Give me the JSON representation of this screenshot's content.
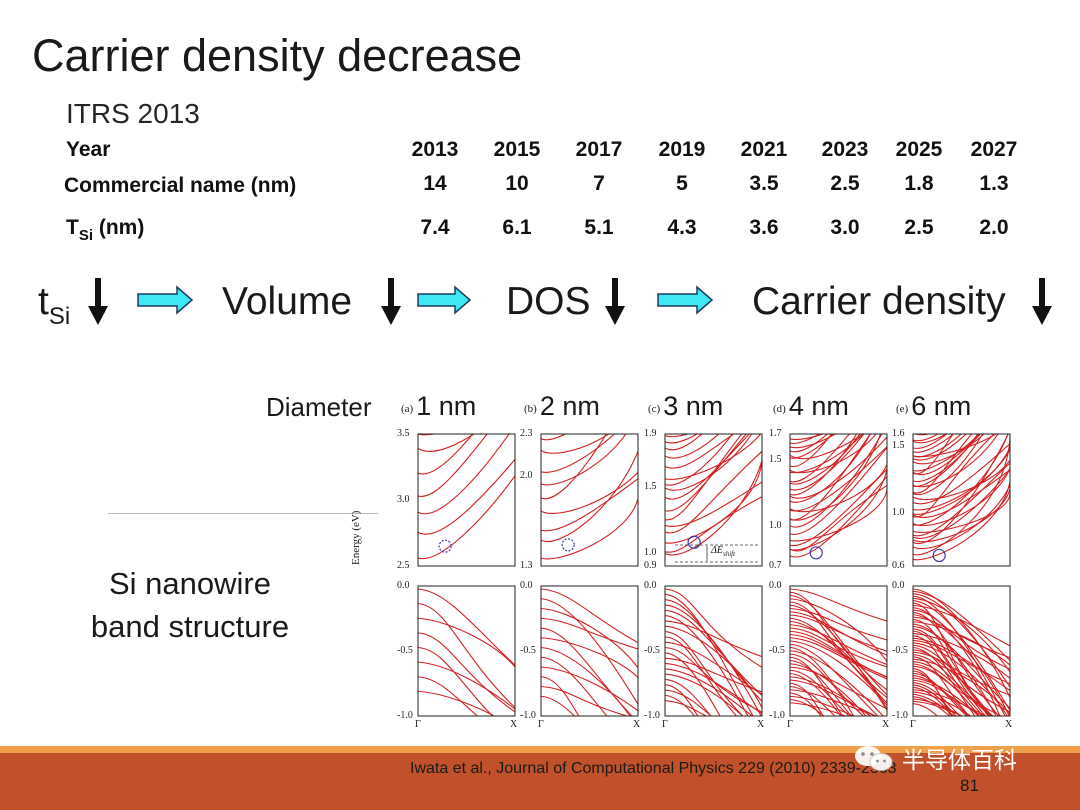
{
  "slide": {
    "title": "Carrier density decrease",
    "subtitle": "ITRS 2013",
    "page_number": "81",
    "citation": "Iwata et al., Journal of Computational Physics 229 (2010) 2339-2363"
  },
  "table": {
    "years_label": "Year",
    "commercial_label": "Commercial name (nm)",
    "tsi_label_main": "T",
    "tsi_label_sub": "Si",
    "tsi_label_unit": " (nm)",
    "years": [
      "2013",
      "2015",
      "2017",
      "2019",
      "2021",
      "2023",
      "2025",
      "2027"
    ],
    "commercial": [
      "14",
      "10",
      "7",
      "5",
      "3.5",
      "2.5",
      "1.8",
      "1.3"
    ],
    "tsi": [
      "7.4",
      "6.1",
      "5.1",
      "4.3",
      "3.6",
      "3.0",
      "2.5",
      "2.0"
    ]
  },
  "flow": {
    "tsi_main": "t",
    "tsi_sub": "Si",
    "volume": "Volume",
    "dos": "DOS",
    "carrier": "Carrier density"
  },
  "figure": {
    "diameter_label": "Diameter",
    "caption_line1": "Si nanowire",
    "caption_line2": "band structure",
    "energy_axis": "Energy (eV)",
    "delta_label": "ΔE",
    "delta_sub": "shift",
    "panels": [
      {
        "tag": "(a)",
        "diameter": "1 nm",
        "cb_ticks": [
          "3.5",
          "3.0",
          "2.5"
        ],
        "vb_ticks": [
          "0.0",
          "-0.5",
          "-1.0"
        ],
        "x_ticks": [
          "Γ",
          "X"
        ]
      },
      {
        "tag": "(b)",
        "diameter": "2 nm",
        "cb_ticks": [
          "2.3",
          "2.0",
          "1.3"
        ],
        "vb_ticks": [
          "0.0",
          "-0.5",
          "-1.0"
        ],
        "x_ticks": [
          "Γ",
          "X"
        ]
      },
      {
        "tag": "(c)",
        "diameter": "3 nm",
        "cb_ticks": [
          "1.9",
          "1.5",
          "1.0",
          "0.9"
        ],
        "vb_ticks": [
          "0.0",
          "-0.5",
          "-1.0"
        ],
        "x_ticks": [
          "Γ",
          "X"
        ]
      },
      {
        "tag": "(d)",
        "diameter": "4 nm",
        "cb_ticks": [
          "1.7",
          "1.5",
          "1.0",
          "0.7"
        ],
        "vb_ticks": [
          "0.0",
          "-0.5",
          "-1.0"
        ],
        "x_ticks": [
          "Γ",
          "X"
        ]
      },
      {
        "tag": "(e)",
        "diameter": "6 nm",
        "cb_ticks": [
          "1.6",
          "1.5",
          "1.0",
          "0.6"
        ],
        "vb_ticks": [
          "0.0",
          "-0.5",
          "-1.0"
        ],
        "x_ticks": [
          "Γ",
          "X"
        ]
      }
    ]
  },
  "watermark": {
    "icon": "wechat-icon",
    "text": "半导体百科"
  },
  "colors": {
    "band_line": "#d42020",
    "arrow_fill": "#3ee8f5",
    "arrow_stroke": "#1f3a5c",
    "circle": "#3a3aa8",
    "footer_bar": "#c0512a",
    "footer_stripe": "#f0a04a"
  }
}
